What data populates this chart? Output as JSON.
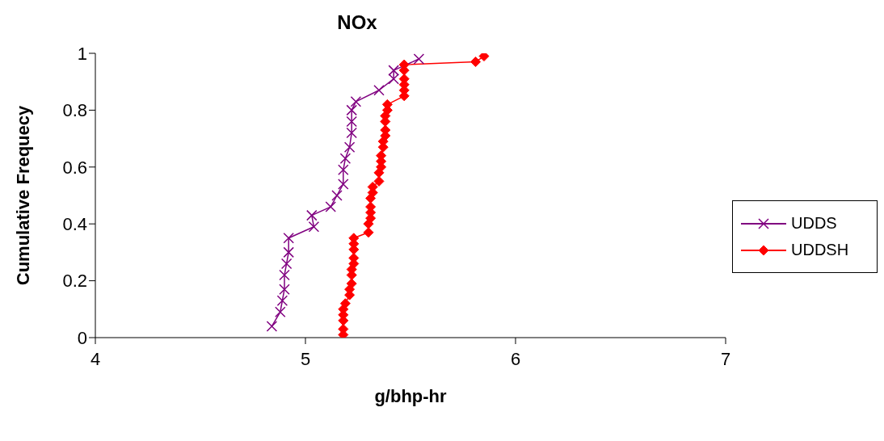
{
  "chart_data": {
    "type": "line",
    "title": "NOx",
    "xlabel": "g/bhp-hr",
    "ylabel": "Cumulative Frequecy",
    "xlim": [
      4,
      7
    ],
    "xticks": [
      4,
      5,
      6,
      7
    ],
    "ylim": [
      0,
      1
    ],
    "yticks": [
      0,
      0.2,
      0.4,
      0.6,
      0.8,
      1
    ],
    "grid": false,
    "legend": "right",
    "series": [
      {
        "name": "UDDS",
        "color": "#800080",
        "marker": "cross",
        "x": [
          4.84,
          4.88,
          4.89,
          4.9,
          4.9,
          4.91,
          4.92,
          4.92,
          5.04,
          5.03,
          5.12,
          5.15,
          5.18,
          5.18,
          5.19,
          5.21,
          5.22,
          5.22,
          5.22,
          5.24,
          5.35,
          5.42,
          5.42,
          5.54
        ],
        "values": [
          0.04,
          0.09,
          0.13,
          0.17,
          0.22,
          0.26,
          0.3,
          0.35,
          0.39,
          0.43,
          0.46,
          0.5,
          0.54,
          0.59,
          0.63,
          0.67,
          0.72,
          0.76,
          0.8,
          0.83,
          0.87,
          0.91,
          0.94,
          0.98
        ]
      },
      {
        "name": "UDDSH",
        "color": "#ff0000",
        "marker": "diamond",
        "x": [
          5.18,
          5.18,
          5.18,
          5.18,
          5.18,
          5.19,
          5.21,
          5.21,
          5.22,
          5.22,
          5.22,
          5.23,
          5.23,
          5.23,
          5.23,
          5.23,
          5.3,
          5.3,
          5.31,
          5.31,
          5.31,
          5.31,
          5.32,
          5.32,
          5.35,
          5.35,
          5.36,
          5.36,
          5.36,
          5.37,
          5.37,
          5.38,
          5.38,
          5.38,
          5.38,
          5.39,
          5.39,
          5.47,
          5.47,
          5.47,
          5.47,
          5.47,
          5.47,
          5.81,
          5.85
        ],
        "values": [
          0.01,
          0.03,
          0.06,
          0.08,
          0.1,
          0.12,
          0.15,
          0.17,
          0.19,
          0.22,
          0.24,
          0.26,
          0.28,
          0.31,
          0.33,
          0.35,
          0.37,
          0.4,
          0.42,
          0.44,
          0.46,
          0.49,
          0.51,
          0.53,
          0.55,
          0.58,
          0.6,
          0.62,
          0.64,
          0.67,
          0.69,
          0.71,
          0.73,
          0.76,
          0.78,
          0.8,
          0.82,
          0.85,
          0.87,
          0.89,
          0.91,
          0.94,
          0.96,
          0.97,
          0.99
        ]
      }
    ]
  }
}
